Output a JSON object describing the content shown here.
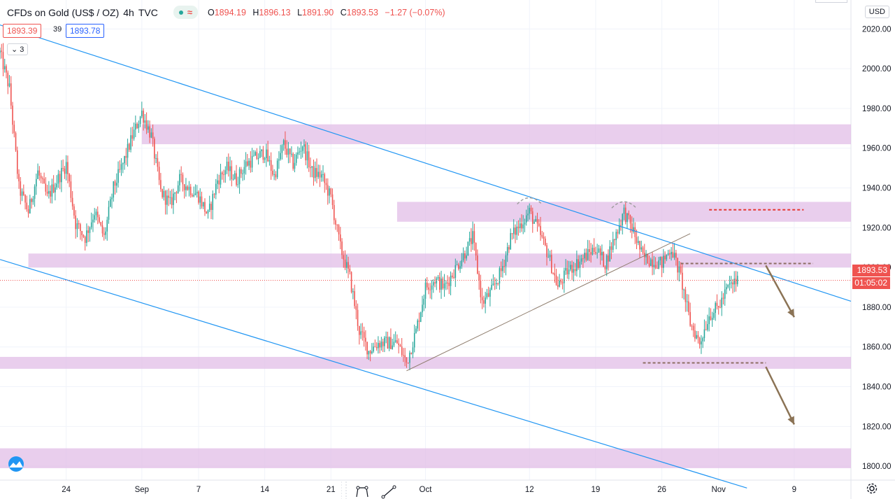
{
  "header": {
    "symbol": "CFDs on Gold (US$ / OZ)",
    "interval": "4h",
    "source": "TVC",
    "open_label": "O",
    "open": "1894.19",
    "high_label": "H",
    "high": "1896.13",
    "low_label": "L",
    "low": "1891.90",
    "close_label": "C",
    "close": "1893.53",
    "change": "−1.27 (−0.07%)"
  },
  "bid_ask": {
    "bid": "1893.39",
    "spread": "39",
    "ask": "1893.78"
  },
  "indicators_collapsed": "3",
  "currency": "USD",
  "last_price_label": "1893.53",
  "countdown": "01:05:02",
  "colors": {
    "up": "#26a69a",
    "down": "#ef5350",
    "zone": "#e1bee7",
    "channel": "#2196f3",
    "trendline": "#8d7b6b",
    "arrow": "#8b7355"
  },
  "icons": [
    "collapse-chevron-icon",
    "tradingview-logo-icon",
    "pattern-tool-icon",
    "trendline-tool-icon",
    "settings-gear-icon"
  ],
  "chart_data": {
    "type": "candlestick",
    "y_axis": {
      "ticks": [
        1800,
        1820,
        1840,
        1860,
        1880,
        1900,
        1920,
        1940,
        1960,
        1980,
        2000,
        2020
      ],
      "tick_labels": [
        "1800.00",
        "1820.00",
        "1840.00",
        "1860.00",
        "1880.00",
        "1900.00",
        "1920.00",
        "1940.00",
        "1960.00",
        "1980.00",
        "2000.00",
        "2020.00"
      ],
      "range": [
        1793,
        2024
      ]
    },
    "x_axis": {
      "tick_labels": [
        "24",
        "Sep",
        "7",
        "14",
        "21",
        "Oct",
        "12",
        "19",
        "26",
        "Nov",
        "9"
      ],
      "tick_dates": [
        "2020-08-24",
        "2020-09-01",
        "2020-09-07",
        "2020-09-14",
        "2020-09-21",
        "2020-10-01",
        "2020-10-12",
        "2020-10-19",
        "2020-10-26",
        "2020-11-01",
        "2020-11-09"
      ],
      "range": [
        "2020-08-17",
        "2020-11-15"
      ]
    },
    "price_path": [
      [
        "2020-08-17",
        2008
      ],
      [
        "2020-08-18",
        1990
      ],
      [
        "2020-08-19",
        1940
      ],
      [
        "2020-08-20",
        1928
      ],
      [
        "2020-08-21",
        1948
      ],
      [
        "2020-08-22",
        1935
      ],
      [
        "2020-08-24",
        1952
      ],
      [
        "2020-08-25",
        1922
      ],
      [
        "2020-08-26",
        1915
      ],
      [
        "2020-08-27",
        1928
      ],
      [
        "2020-08-28",
        1915
      ],
      [
        "2020-08-29",
        1940
      ],
      [
        "2020-08-30",
        1952
      ],
      [
        "2020-08-31",
        1966
      ],
      [
        "2020-09-01",
        1978
      ],
      [
        "2020-09-02",
        1966
      ],
      [
        "2020-09-03",
        1938
      ],
      [
        "2020-09-04",
        1932
      ],
      [
        "2020-09-05",
        1944
      ],
      [
        "2020-09-07",
        1936
      ],
      [
        "2020-09-08",
        1926
      ],
      [
        "2020-09-09",
        1944
      ],
      [
        "2020-09-10",
        1950
      ],
      [
        "2020-09-11",
        1944
      ],
      [
        "2020-09-12",
        1952
      ],
      [
        "2020-09-14",
        1958
      ],
      [
        "2020-09-15",
        1946
      ],
      [
        "2020-09-16",
        1962
      ],
      [
        "2020-09-17",
        1952
      ],
      [
        "2020-09-18",
        1962
      ],
      [
        "2020-09-19",
        1948
      ],
      [
        "2020-09-20",
        1946
      ],
      [
        "2020-09-21",
        1935
      ],
      [
        "2020-09-22",
        1910
      ],
      [
        "2020-09-23",
        1895
      ],
      [
        "2020-09-24",
        1868
      ],
      [
        "2020-09-25",
        1858
      ],
      [
        "2020-09-26",
        1862
      ],
      [
        "2020-09-28",
        1862
      ],
      [
        "2020-09-29",
        1852
      ],
      [
        "2020-09-30",
        1868
      ],
      [
        "2020-10-01",
        1890
      ],
      [
        "2020-10-02",
        1894
      ],
      [
        "2020-10-03",
        1890
      ],
      [
        "2020-10-05",
        1906
      ],
      [
        "2020-10-06",
        1915
      ],
      [
        "2020-10-07",
        1882
      ],
      [
        "2020-10-08",
        1888
      ],
      [
        "2020-10-09",
        1898
      ],
      [
        "2020-10-10",
        1915
      ],
      [
        "2020-10-12",
        1928
      ],
      [
        "2020-10-13",
        1918
      ],
      [
        "2020-10-14",
        1906
      ],
      [
        "2020-10-15",
        1890
      ],
      [
        "2020-10-16",
        1898
      ],
      [
        "2020-10-17",
        1902
      ],
      [
        "2020-10-19",
        1910
      ],
      [
        "2020-10-20",
        1902
      ],
      [
        "2020-10-21",
        1915
      ],
      [
        "2020-10-22",
        1928
      ],
      [
        "2020-10-23",
        1918
      ],
      [
        "2020-10-24",
        1905
      ],
      [
        "2020-10-26",
        1902
      ],
      [
        "2020-10-27",
        1910
      ],
      [
        "2020-10-28",
        1895
      ],
      [
        "2020-10-29",
        1872
      ],
      [
        "2020-10-30",
        1862
      ],
      [
        "2020-10-31",
        1876
      ],
      [
        "2020-11-01",
        1880
      ],
      [
        "2020-11-02",
        1890
      ],
      [
        "2020-11-03",
        1893.53
      ]
    ],
    "zones": [
      {
        "from": 1962,
        "to": 1972,
        "start": "2020-09-01",
        "end": "2020-11-15"
      },
      {
        "from": 1923,
        "to": 1933,
        "start": "2020-09-28",
        "end": "2020-11-15"
      },
      {
        "from": 1900,
        "to": 1907,
        "start": "2020-08-20",
        "end": "2020-11-15"
      },
      {
        "from": 1849,
        "to": 1855,
        "start": "2020-08-17",
        "end": "2020-11-15"
      },
      {
        "from": 1799,
        "to": 1809,
        "start": "2020-08-17",
        "end": "2020-11-15"
      }
    ],
    "channel_lines": [
      {
        "start": [
          "2020-08-17",
          2022
        ],
        "end": [
          "2020-11-15",
          1883
        ]
      },
      {
        "start": [
          "2020-08-17",
          1904
        ],
        "end": [
          "2020-11-04",
          1789
        ]
      }
    ],
    "support_trendline": {
      "start": [
        "2020-09-29",
        1848
      ],
      "end": [
        "2020-10-29",
        1917
      ]
    },
    "levels": [
      {
        "price": 1929,
        "start": "2020-10-31",
        "end": "2020-11-10",
        "color": "#e53935"
      },
      {
        "price": 1902,
        "start": "2020-10-28",
        "end": "2020-11-11",
        "color": "#8d6e63"
      },
      {
        "price": 1852,
        "start": "2020-10-24",
        "end": "2020-11-06",
        "color": "#8d6e63"
      }
    ],
    "arcs": [
      {
        "center": [
          "2020-10-12",
          1934
        ],
        "width_days": 2.6
      },
      {
        "center": [
          "2020-10-22",
          1932
        ],
        "width_days": 2.6
      }
    ],
    "arrows": [
      {
        "from": [
          "2020-11-06",
          1901
        ],
        "to": [
          "2020-11-09",
          1875
        ]
      },
      {
        "from": [
          "2020-11-06",
          1850
        ],
        "to": [
          "2020-11-09",
          1821
        ]
      }
    ],
    "last_price": 1893.53,
    "grid": true
  }
}
